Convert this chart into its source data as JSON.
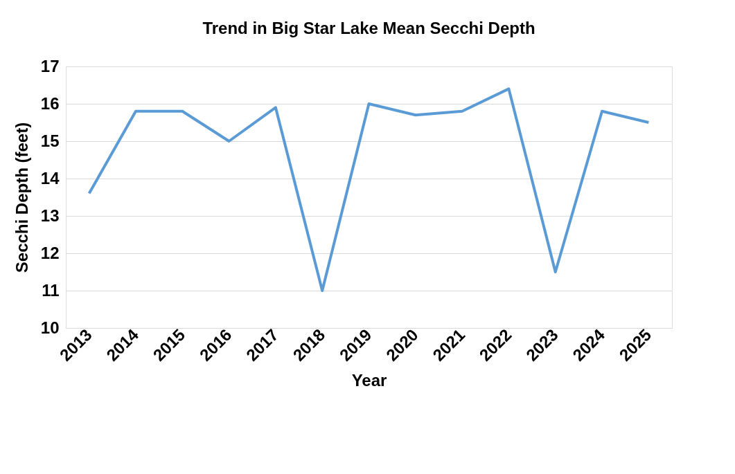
{
  "chart_data": {
    "type": "line",
    "title": "Trend in Big Star Lake Mean Secchi  Depth",
    "xlabel": "Year",
    "ylabel": "Secchi Depth (feet)",
    "categories": [
      "2013",
      "2014",
      "2015",
      "2016",
      "2017",
      "2018",
      "2019",
      "2020",
      "2021",
      "2022",
      "2023",
      "2024",
      "2025"
    ],
    "series": [
      {
        "color": "#5b9bd5",
        "values": [
          13.6,
          15.8,
          15.8,
          15.0,
          15.9,
          11.0,
          16.0,
          15.7,
          15.8,
          16.4,
          11.5,
          15.8,
          15.5
        ]
      }
    ],
    "ylim": [
      10,
      17
    ],
    "yticks": [
      10,
      11,
      12,
      13,
      14,
      15,
      16,
      17
    ],
    "grid": "y",
    "marker": "none",
    "line_style": "solid"
  }
}
